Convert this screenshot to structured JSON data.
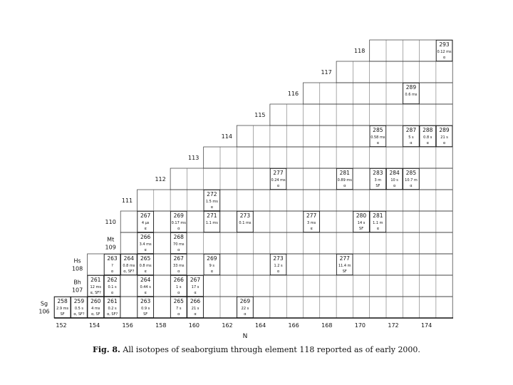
{
  "chart_data": {
    "type": "table",
    "title": "",
    "xlabel": "N",
    "x_ticks": [
      "152",
      "154",
      "156",
      "158",
      "160",
      "162",
      "164",
      "166",
      "168",
      "170",
      "172",
      "174"
    ],
    "element_labels": [
      {
        "Z": 118,
        "lines": [
          "118"
        ]
      },
      {
        "Z": 117,
        "lines": [
          "117"
        ]
      },
      {
        "Z": 116,
        "lines": [
          "116"
        ]
      },
      {
        "Z": 115,
        "lines": [
          "115"
        ]
      },
      {
        "Z": 114,
        "lines": [
          "114"
        ]
      },
      {
        "Z": 113,
        "lines": [
          "113"
        ]
      },
      {
        "Z": 112,
        "lines": [
          "112"
        ]
      },
      {
        "Z": 111,
        "lines": [
          "111"
        ]
      },
      {
        "Z": 110,
        "lines": [
          "110"
        ]
      },
      {
        "Z": 109,
        "lines": [
          "Mt",
          "109"
        ]
      },
      {
        "Z": 108,
        "lines": [
          "Hs",
          "108"
        ]
      },
      {
        "Z": 107,
        "lines": [
          "Bh",
          "107"
        ]
      },
      {
        "Z": 106,
        "lines": [
          "Sg",
          "106"
        ]
      }
    ],
    "isotopes": [
      {
        "Z": 118,
        "N": 175,
        "mass": "293",
        "halflife": "0.12 ms",
        "decay": "α"
      },
      {
        "Z": 116,
        "N": 173,
        "mass": "289",
        "halflife": "0.6 ms",
        "decay": ""
      },
      {
        "Z": 114,
        "N": 171,
        "mass": "285",
        "halflife": "0.58 ms",
        "decay": "α"
      },
      {
        "Z": 114,
        "N": 173,
        "mass": "287",
        "halflife": "5 s",
        "decay": "α"
      },
      {
        "Z": 114,
        "N": 174,
        "mass": "288",
        "halflife": "0.8 s",
        "decay": "α"
      },
      {
        "Z": 114,
        "N": 175,
        "mass": "289",
        "halflife": "21 s",
        "decay": "α"
      },
      {
        "Z": 112,
        "N": 165,
        "mass": "277",
        "halflife": "0.24 ms",
        "decay": "α"
      },
      {
        "Z": 112,
        "N": 169,
        "mass": "281",
        "halflife": "0.89 ms",
        "decay": "α"
      },
      {
        "Z": 112,
        "N": 171,
        "mass": "283",
        "halflife": "3 m",
        "decay": "SF"
      },
      {
        "Z": 112,
        "N": 172,
        "mass": "284",
        "halflife": "10 s",
        "decay": "α"
      },
      {
        "Z": 112,
        "N": 173,
        "mass": "285",
        "halflife": "10.7 m",
        "decay": "α"
      },
      {
        "Z": 111,
        "N": 161,
        "mass": "272",
        "halflife": "1.5 ms",
        "decay": "α"
      },
      {
        "Z": 110,
        "N": 157,
        "mass": "267",
        "halflife": "4 μs",
        "decay": "α"
      },
      {
        "Z": 110,
        "N": 159,
        "mass": "269",
        "halflife": "0.17 ms",
        "decay": "α"
      },
      {
        "Z": 110,
        "N": 161,
        "mass": "271",
        "halflife": "1.1 ms",
        "decay": ""
      },
      {
        "Z": 110,
        "N": 163,
        "mass": "273",
        "halflife": "0.1 ms",
        "decay": ""
      },
      {
        "Z": 110,
        "N": 167,
        "mass": "277",
        "halflife": "3 ms",
        "decay": "α"
      },
      {
        "Z": 110,
        "N": 170,
        "mass": "280",
        "halflife": "14 s",
        "decay": "SF"
      },
      {
        "Z": 110,
        "N": 171,
        "mass": "281",
        "halflife": "1.1 m",
        "decay": "α"
      },
      {
        "Z": 109,
        "N": 157,
        "mass": "266",
        "halflife": "3.4 ms",
        "decay": "α"
      },
      {
        "Z": 109,
        "N": 159,
        "mass": "268",
        "halflife": "70 ms",
        "decay": "α"
      },
      {
        "Z": 108,
        "N": 155,
        "mass": "263",
        "halflife": "?",
        "decay": "α"
      },
      {
        "Z": 108,
        "N": 156,
        "mass": "264",
        "halflife": "0.8 ms",
        "decay": "α, SF?"
      },
      {
        "Z": 108,
        "N": 157,
        "mass": "265",
        "halflife": "0.8 ms",
        "decay": "α"
      },
      {
        "Z": 108,
        "N": 159,
        "mass": "267",
        "halflife": "33 ms",
        "decay": "α"
      },
      {
        "Z": 108,
        "N": 161,
        "mass": "269",
        "halflife": "9 s",
        "decay": "α"
      },
      {
        "Z": 108,
        "N": 165,
        "mass": "273",
        "halflife": "1.2 s",
        "decay": "α"
      },
      {
        "Z": 108,
        "N": 169,
        "mass": "277",
        "halflife": "11.4 m",
        "decay": "SF"
      },
      {
        "Z": 107,
        "N": 154,
        "mass": "261",
        "halflife": "12 ms",
        "decay": "α, SF?"
      },
      {
        "Z": 107,
        "N": 155,
        "mass": "262",
        "halflife": "0.1 s",
        "decay": "α"
      },
      {
        "Z": 107,
        "N": 157,
        "mass": "264",
        "halflife": "0.44 s",
        "decay": "α"
      },
      {
        "Z": 107,
        "N": 159,
        "mass": "266",
        "halflife": "1 s",
        "decay": "α"
      },
      {
        "Z": 107,
        "N": 160,
        "mass": "267",
        "halflife": "17 s",
        "decay": "α"
      },
      {
        "Z": 106,
        "N": 152,
        "mass": "258",
        "halflife": "2.9 ms",
        "decay": "SF"
      },
      {
        "Z": 106,
        "N": 153,
        "mass": "259",
        "halflife": "0.5 s",
        "decay": "α, SF?"
      },
      {
        "Z": 106,
        "N": 154,
        "mass": "260",
        "halflife": "4 ms",
        "decay": "α, SF"
      },
      {
        "Z": 106,
        "N": 155,
        "mass": "261",
        "halflife": "0.2 s",
        "decay": "α, SF?"
      },
      {
        "Z": 106,
        "N": 157,
        "mass": "263",
        "halflife": "0.9 s",
        "decay": "SF"
      },
      {
        "Z": 106,
        "N": 159,
        "mass": "265",
        "halflife": "7 s",
        "decay": "α"
      },
      {
        "Z": 106,
        "N": 160,
        "mass": "266",
        "halflife": "21 s",
        "decay": "α"
      },
      {
        "Z": 106,
        "N": 163,
        "mass": "269",
        "halflife": "22 s",
        "decay": "α"
      }
    ]
  },
  "caption": {
    "label": "Fig. 8.",
    "text": "All isotopes of seaborgium through element 118 reported as of early 2000."
  }
}
